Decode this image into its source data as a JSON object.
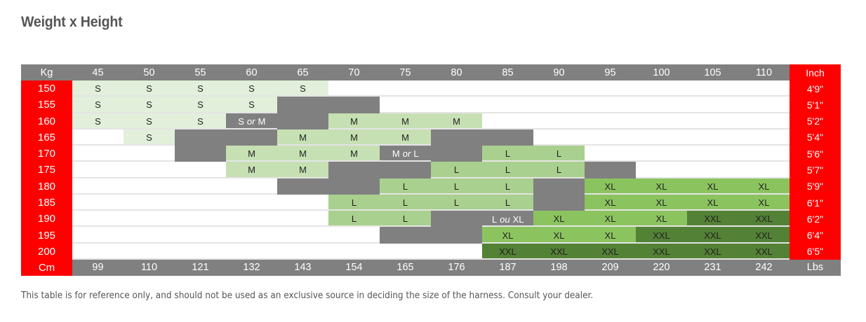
{
  "title": "Weight x Height",
  "header": {
    "corner_left": "Kg",
    "corner_right": "Inch",
    "weights_kg": [
      "45",
      "50",
      "55",
      "60",
      "65",
      "70",
      "75",
      "80",
      "85",
      "90",
      "95",
      "100",
      "105",
      "110"
    ]
  },
  "footer": {
    "corner_left": "Cm",
    "corner_right": "Lbs",
    "weights_lbs": [
      "99",
      "110",
      "121",
      "132",
      "143",
      "154",
      "165",
      "176",
      "187",
      "198",
      "209",
      "220",
      "231",
      "242"
    ]
  },
  "heights_cm": [
    "150",
    "155",
    "160",
    "165",
    "170",
    "175",
    "180",
    "185",
    "190",
    "195",
    "200"
  ],
  "heights_inch": [
    "4'9\"",
    "5'1\"",
    "5'2\"",
    "5'4\"",
    "5'6\"",
    "5'7\"",
    "5'9\"",
    "6'1\"",
    "6'2\"",
    "6'4\"",
    "6'5\""
  ],
  "size_grid": [
    [
      "S",
      "S",
      "S",
      "S",
      "S",
      "",
      "",
      "",
      "",
      "",
      "",
      "",
      "",
      ""
    ],
    [
      "S",
      "S",
      "S",
      "S",
      "",
      "",
      "",
      "",
      "",
      "",
      "",
      "",
      "",
      ""
    ],
    [
      "S",
      "S",
      "S",
      "S or M",
      "",
      "M",
      "M",
      "M",
      "",
      "",
      "",
      "",
      "",
      ""
    ],
    [
      "",
      "S",
      "",
      "",
      "M",
      "M",
      "M",
      "",
      "",
      "",
      "",
      "",
      "",
      ""
    ],
    [
      "",
      "",
      "",
      "M",
      "M",
      "M",
      "M or L",
      "",
      "L",
      "L",
      "",
      "",
      "",
      ""
    ],
    [
      "",
      "",
      "",
      "M",
      "M",
      "",
      "",
      "L",
      "L",
      "L",
      "",
      "",
      "",
      ""
    ],
    [
      "",
      "",
      "",
      "",
      "",
      "",
      "L",
      "L",
      "L",
      "",
      "XL",
      "XL",
      "XL",
      "XL"
    ],
    [
      "",
      "",
      "",
      "",
      "",
      "L",
      "L",
      "L",
      "L",
      "",
      "XL",
      "XL",
      "XL",
      "XL"
    ],
    [
      "",
      "",
      "",
      "",
      "",
      "L",
      "L",
      "",
      "L ou XL",
      "XL",
      "XL",
      "XL",
      "XXL",
      "XXL"
    ],
    [
      "",
      "",
      "",
      "",
      "",
      "",
      "",
      "",
      "XL",
      "XL",
      "XL",
      "XXL",
      "XXL",
      "XXL"
    ],
    [
      "",
      "",
      "",
      "",
      "",
      "",
      "",
      "",
      "XXL",
      "XXL",
      "XXL",
      "XXL",
      "XXL",
      "XXL"
    ]
  ],
  "cell_colors": [
    [
      "S",
      "S",
      "S",
      "S",
      "S",
      "W",
      "W",
      "W",
      "W",
      "W",
      "W",
      "W",
      "W",
      "W"
    ],
    [
      "S",
      "S",
      "S",
      "S",
      "G",
      "G",
      "W",
      "W",
      "W",
      "W",
      "W",
      "W",
      "W",
      "W"
    ],
    [
      "S",
      "S",
      "S",
      "G",
      "G",
      "M",
      "M",
      "M",
      "W",
      "W",
      "W",
      "W",
      "W",
      "W"
    ],
    [
      "W",
      "S",
      "G",
      "G",
      "M",
      "M",
      "M",
      "G",
      "G",
      "W",
      "W",
      "W",
      "W",
      "W"
    ],
    [
      "W",
      "W",
      "G",
      "M",
      "M",
      "M",
      "G",
      "G",
      "L",
      "L",
      "W",
      "W",
      "W",
      "W"
    ],
    [
      "W",
      "W",
      "W",
      "M",
      "M",
      "G",
      "G",
      "L",
      "L",
      "L",
      "G",
      "W",
      "W",
      "W"
    ],
    [
      "W",
      "W",
      "W",
      "W",
      "G",
      "G",
      "L",
      "L",
      "L",
      "G",
      "X",
      "X",
      "X",
      "X"
    ],
    [
      "W",
      "W",
      "W",
      "W",
      "W",
      "L",
      "L",
      "L",
      "L",
      "G",
      "X",
      "X",
      "X",
      "X"
    ],
    [
      "W",
      "W",
      "W",
      "W",
      "W",
      "L",
      "L",
      "G",
      "G",
      "X",
      "X",
      "X",
      "D",
      "D"
    ],
    [
      "W",
      "W",
      "W",
      "W",
      "W",
      "W",
      "G",
      "G",
      "X",
      "X",
      "X",
      "D",
      "D",
      "D"
    ],
    [
      "W",
      "W",
      "W",
      "W",
      "W",
      "W",
      "W",
      "W",
      "D",
      "D",
      "D",
      "D",
      "D",
      "D"
    ]
  ],
  "colors": {
    "red": "#ff0000",
    "header_gray": "#808080",
    "size_S": "#e2efda",
    "size_M": "#c6e0b4",
    "size_L": "#a9d08e",
    "size_XL": "#8bc45f",
    "size_XXL": "#538135",
    "overlap_gray": "#808080",
    "white": "#ffffff"
  },
  "note": "This table is for reference only, and should not be used as an exclusive source in deciding the size of the harness. Consult your dealer."
}
